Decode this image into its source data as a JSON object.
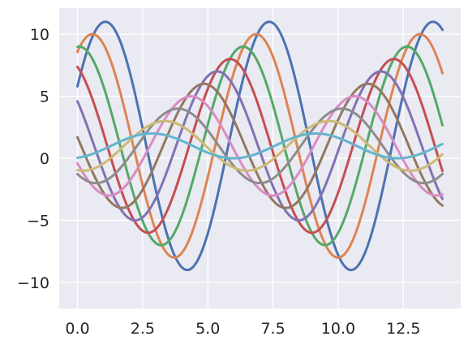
{
  "chart_data": {
    "type": "line",
    "title": "",
    "xlabel": "",
    "ylabel": "",
    "xlim": [
      -0.7,
      14.7
    ],
    "ylim": [
      -12.1,
      12.1
    ],
    "xticks": [
      {
        "value": 0.0,
        "label": "0.0"
      },
      {
        "value": 2.5,
        "label": "2.5"
      },
      {
        "value": 5.0,
        "label": "5.0"
      },
      {
        "value": 7.5,
        "label": "7.5"
      },
      {
        "value": 10.0,
        "label": "10.0"
      },
      {
        "value": 12.5,
        "label": "12.5"
      }
    ],
    "yticks": [
      {
        "value": 10,
        "label": "10"
      },
      {
        "value": 5,
        "label": "5"
      },
      {
        "value": 0,
        "label": "0"
      },
      {
        "value": -5,
        "label": "−5"
      },
      {
        "value": -10,
        "label": "−10"
      }
    ],
    "grid": true,
    "background": "#eaeaf2",
    "grid_color": "#ffffff",
    "x_range": [
      0,
      14
    ],
    "series": [
      {
        "color": "#4c72b0",
        "amplitude": 10,
        "offset": 1,
        "phase_shift": 0.5
      },
      {
        "color": "#dd8452",
        "amplitude": 9,
        "offset": 1,
        "phase_shift": 1.0
      },
      {
        "color": "#55a868",
        "amplitude": 8,
        "offset": 1,
        "phase_shift": 1.5
      },
      {
        "color": "#c44e52",
        "amplitude": 7,
        "offset": 1,
        "phase_shift": 2.0
      },
      {
        "color": "#8172b3",
        "amplitude": 6,
        "offset": 1,
        "phase_shift": 2.5
      },
      {
        "color": "#937860",
        "amplitude": 5,
        "offset": 1,
        "phase_shift": 3.0
      },
      {
        "color": "#da8bc3",
        "amplitude": 4,
        "offset": 1,
        "phase_shift": 3.5
      },
      {
        "color": "#8c8c8c",
        "amplitude": 3,
        "offset": 1,
        "phase_shift": 4.0
      },
      {
        "color": "#ccb974",
        "amplitude": 2,
        "offset": 1,
        "phase_shift": 4.5
      },
      {
        "color": "#64b5cd",
        "amplitude": 1,
        "offset": 1,
        "phase_shift": 5.0
      }
    ]
  }
}
